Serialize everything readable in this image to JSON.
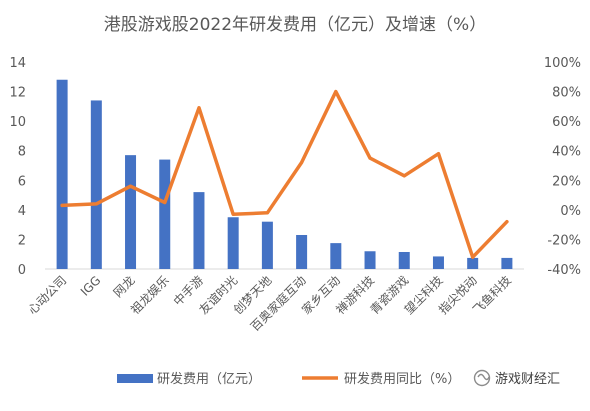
{
  "chart_data": {
    "type": "bar",
    "title": "港股游戏股2022年研发费用（亿元）及增速（%）",
    "categories": [
      "心动公司",
      "IGG",
      "网龙",
      "祖龙娱乐",
      "中手游",
      "友谊时光",
      "创梦天地",
      "百奥家庭互动",
      "家乡互动",
      "禅游科技",
      "青瓷游戏",
      "望尘科技",
      "指尖悦动",
      "飞鱼科技"
    ],
    "series": [
      {
        "name": "研发费用（亿元）",
        "type": "bar",
        "axis": "left",
        "color": "#4472C4",
        "values": [
          12.8,
          11.4,
          7.7,
          7.4,
          5.2,
          3.5,
          3.2,
          2.3,
          1.75,
          1.2,
          1.15,
          0.85,
          0.75,
          0.75
        ]
      },
      {
        "name": "研发费用同比（%）",
        "type": "line",
        "axis": "right",
        "color": "#ED7D31",
        "values": [
          3,
          4,
          16,
          5,
          69,
          -3,
          -2,
          32,
          80,
          35,
          23,
          38,
          -32,
          -8
        ]
      }
    ],
    "y_left": {
      "min": 0,
      "max": 14,
      "step": 2,
      "ticks": [
        "0",
        "2",
        "4",
        "6",
        "8",
        "10",
        "12",
        "14"
      ]
    },
    "y_right": {
      "min": -40,
      "max": 100,
      "step": 20,
      "ticks": [
        "-40%",
        "-20%",
        "0%",
        "20%",
        "40%",
        "60%",
        "80%",
        "100%"
      ]
    },
    "legend_position": "bottom",
    "grid": false
  },
  "watermark": {
    "text": "游戏财经汇",
    "icon": "wechat-channel-icon"
  }
}
